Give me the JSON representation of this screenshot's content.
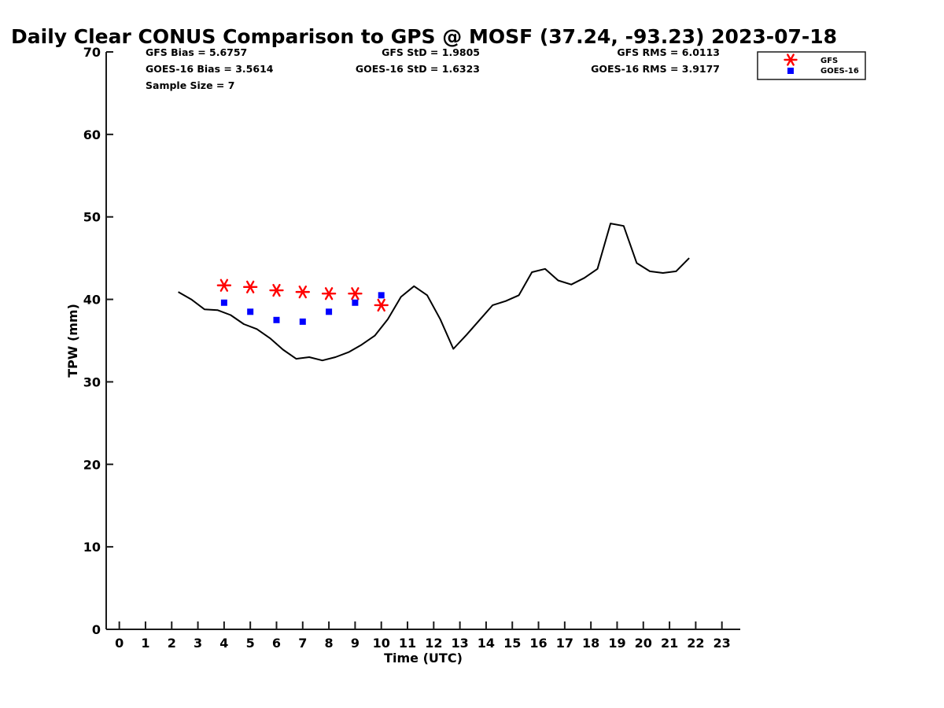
{
  "chart_data": {
    "type": "scatter",
    "title": "Daily Clear CONUS Comparison to GPS @ MOSF (37.24, -93.23) 2023-07-18",
    "xlabel": "Time (UTC)",
    "ylabel": "TPW (mm)",
    "xlim": [
      -0.5,
      23.7
    ],
    "ylim": [
      0,
      70
    ],
    "xticks": [
      "0",
      "1",
      "2",
      "3",
      "4",
      "5",
      "6",
      "7",
      "8",
      "9",
      "10",
      "11",
      "12",
      "13",
      "14",
      "15",
      "16",
      "17",
      "18",
      "19",
      "20",
      "21",
      "22",
      "23"
    ],
    "yticks": [
      "0",
      "10",
      "20",
      "30",
      "40",
      "50",
      "60",
      "70"
    ],
    "grid": false,
    "legend_position": "top-right",
    "stats": [
      {
        "text": "GFS Bias = 5.6757"
      },
      {
        "text": "GOES-16 Bias = 3.5614"
      },
      {
        "text": "Sample Size = 7"
      },
      {
        "text": "GFS StD = 1.9805"
      },
      {
        "text": "GOES-16 StD = 1.6323"
      },
      {
        "text": "GFS RMS = 6.0113"
      },
      {
        "text": "GOES-16 RMS = 3.9177"
      }
    ],
    "series": [
      {
        "kind": "line",
        "color": "#000000",
        "x": [
          2.25,
          2.75,
          3.25,
          3.75,
          4.25,
          4.75,
          5.25,
          5.75,
          6.25,
          6.75,
          7.25,
          7.75,
          8.25,
          8.75,
          9.25,
          9.75,
          10.25,
          10.75,
          11.25,
          11.75,
          12.25,
          12.75,
          13.25,
          13.75,
          14.25,
          14.75,
          15.25,
          15.75,
          16.25,
          16.75,
          17.25,
          17.75,
          18.25,
          18.75,
          19.25,
          19.75,
          20.25,
          20.75,
          21.25,
          21.75
        ],
        "values": [
          40.9,
          40.0,
          38.8,
          38.7,
          38.1,
          37.0,
          36.4,
          35.3,
          33.9,
          32.8,
          33.0,
          32.6,
          33.0,
          33.6,
          34.5,
          35.6,
          37.6,
          40.3,
          41.6,
          40.5,
          37.6,
          34.0,
          35.7,
          37.5,
          39.3,
          39.8,
          40.5,
          43.3,
          43.7,
          42.3,
          41.8,
          42.6,
          43.7,
          49.2,
          48.9,
          44.4,
          43.4,
          43.2,
          43.4,
          45.0
        ]
      },
      {
        "kind": "marker",
        "name": "GFS",
        "marker": "asterisk",
        "color": "#ff0000",
        "x": [
          4,
          5,
          6,
          7,
          8,
          9,
          10
        ],
        "values": [
          41.7,
          41.5,
          41.1,
          40.9,
          40.7,
          40.7,
          39.3
        ]
      },
      {
        "kind": "marker",
        "name": "GOES-16",
        "marker": "square",
        "color": "#0000ff",
        "x": [
          4,
          5,
          6,
          7,
          8,
          9,
          10
        ],
        "values": [
          39.6,
          38.5,
          37.5,
          37.3,
          38.5,
          39.6,
          40.5
        ]
      }
    ]
  }
}
